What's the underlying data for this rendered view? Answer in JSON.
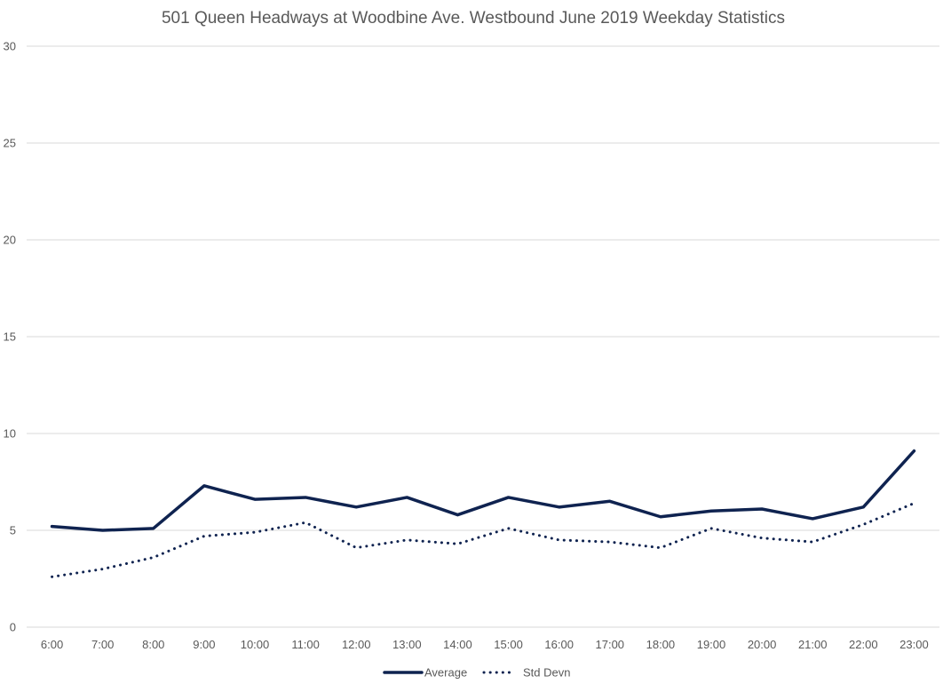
{
  "chart_data": {
    "type": "line",
    "title": "501 Queen Headways at Woodbine Ave. Westbound June 2019 Weekday Statistics",
    "xlabel": "",
    "ylabel": "",
    "ylim": [
      0,
      30
    ],
    "yticks": [
      0,
      5,
      10,
      15,
      20,
      25,
      30
    ],
    "grid": true,
    "legend_position": "bottom-center",
    "categories": [
      "6:00",
      "7:00",
      "8:00",
      "9:00",
      "10:00",
      "11:00",
      "12:00",
      "13:00",
      "14:00",
      "15:00",
      "16:00",
      "17:00",
      "18:00",
      "19:00",
      "20:00",
      "21:00",
      "22:00",
      "23:00"
    ],
    "series": [
      {
        "name": "Average",
        "style": "solid",
        "color": "#0f2350",
        "values": [
          5.2,
          5.0,
          5.1,
          7.3,
          6.6,
          6.7,
          6.2,
          6.7,
          5.8,
          6.7,
          6.2,
          6.5,
          5.7,
          6.0,
          6.1,
          5.6,
          6.2,
          9.1
        ]
      },
      {
        "name": "Std Devn",
        "style": "dotted",
        "color": "#0f2350",
        "values": [
          2.6,
          3.0,
          3.6,
          4.7,
          4.9,
          5.4,
          4.1,
          4.5,
          4.3,
          5.1,
          4.5,
          4.4,
          4.1,
          5.1,
          4.6,
          4.4,
          5.3,
          6.4
        ]
      }
    ]
  }
}
